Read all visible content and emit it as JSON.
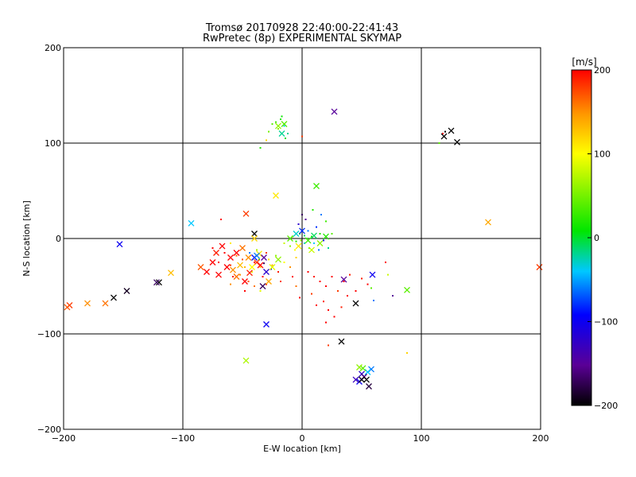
{
  "chart_data": {
    "type": "scatter",
    "title": "Tromsø 20170928 22:40:00-22:41:43",
    "subtitle": "RwPretec (8p) EXPERIMENTAL SKYMAP",
    "xlabel": "E-W location [km]",
    "ylabel": "N-S location [km]",
    "xlim": [
      -200,
      200
    ],
    "ylim": [
      -200,
      200
    ],
    "xticks": [
      -200,
      -100,
      0,
      100,
      200
    ],
    "yticks": [
      -200,
      -100,
      0,
      100,
      200
    ],
    "grid": true,
    "colorbar": {
      "label": "[m/s]",
      "min": -200,
      "max": 200,
      "ticks": [
        200,
        100,
        0,
        -100,
        -200
      ],
      "colormap": "rainbow (black-purple-blue-cyan-green-yellow-orange-red)"
    },
    "point_series": [
      {
        "marker": "dot",
        "points": [
          [
            -22,
            122,
            30
          ],
          [
            -18,
            125,
            20
          ],
          [
            -15,
            118,
            -40
          ],
          [
            -20,
            115,
            60
          ],
          [
            -25,
            120,
            40
          ],
          [
            -12,
            110,
            -20
          ],
          [
            -17,
            128,
            10
          ],
          [
            -28,
            112,
            50
          ],
          [
            -14,
            105,
            0
          ],
          [
            -30,
            103,
            120
          ],
          [
            -35,
            95,
            20
          ],
          [
            0,
            107,
            180
          ],
          [
            -8,
            2,
            50
          ],
          [
            -5,
            -3,
            20
          ],
          [
            -2,
            5,
            0
          ],
          [
            2,
            -5,
            -30
          ],
          [
            5,
            8,
            -60
          ],
          [
            8,
            2,
            10
          ],
          [
            10,
            -5,
            -40
          ],
          [
            12,
            12,
            -80
          ],
          [
            15,
            5,
            20
          ],
          [
            18,
            -2,
            -100
          ],
          [
            20,
            18,
            30
          ],
          [
            -3,
            15,
            -120
          ],
          [
            3,
            20,
            -150
          ],
          [
            6,
            -10,
            40
          ],
          [
            -10,
            -8,
            60
          ],
          [
            14,
            -12,
            -60
          ],
          [
            22,
            -10,
            -20
          ],
          [
            25,
            5,
            40
          ],
          [
            -6,
            -12,
            100
          ],
          [
            0,
            25,
            -170
          ],
          [
            9,
            30,
            20
          ],
          [
            -15,
            -5,
            80
          ],
          [
            16,
            25,
            -60
          ],
          [
            4,
            0,
            30
          ],
          [
            -1,
            -2,
            60
          ],
          [
            2,
            3,
            -10
          ],
          [
            -45,
            -20,
            150
          ],
          [
            -40,
            -25,
            200
          ],
          [
            -35,
            -30,
            120
          ],
          [
            -30,
            -15,
            180
          ],
          [
            -50,
            -22,
            170
          ],
          [
            -25,
            -28,
            140
          ],
          [
            -42,
            -35,
            90
          ],
          [
            -55,
            -18,
            160
          ],
          [
            -33,
            -40,
            200
          ],
          [
            -28,
            -22,
            110
          ],
          [
            -48,
            -30,
            130
          ],
          [
            -38,
            -12,
            70
          ],
          [
            -20,
            -35,
            190
          ],
          [
            -60,
            -28,
            180
          ],
          [
            -15,
            -25,
            100
          ],
          [
            -52,
            -38,
            150
          ],
          [
            -45,
            -45,
            170
          ],
          [
            -30,
            -48,
            200
          ],
          [
            -22,
            -18,
            60
          ],
          [
            -65,
            -15,
            200
          ],
          [
            -58,
            -40,
            190
          ],
          [
            -40,
            -50,
            160
          ],
          [
            -36,
            -22,
            20
          ],
          [
            -44,
            -15,
            -60
          ],
          [
            -10,
            -30,
            150
          ],
          [
            -5,
            -20,
            120
          ],
          [
            -26,
            -32,
            -100
          ],
          [
            -32,
            -26,
            -170
          ],
          [
            -70,
            -25,
            200
          ],
          [
            -75,
            -10,
            200
          ],
          [
            -68,
            20,
            200
          ],
          [
            -60,
            -5,
            110
          ],
          [
            -48,
            -55,
            200
          ],
          [
            -35,
            -55,
            90
          ],
          [
            -18,
            -45,
            180
          ],
          [
            -8,
            -40,
            200
          ],
          [
            5,
            -35,
            200
          ],
          [
            10,
            -40,
            190
          ],
          [
            15,
            -45,
            200
          ],
          [
            20,
            -50,
            200
          ],
          [
            25,
            -40,
            200
          ],
          [
            30,
            -55,
            180
          ],
          [
            35,
            -45,
            200
          ],
          [
            40,
            -38,
            190
          ],
          [
            -2,
            -62,
            200
          ],
          [
            8,
            -58,
            180
          ],
          [
            12,
            -70,
            200
          ],
          [
            18,
            -66,
            190
          ],
          [
            22,
            -75,
            200
          ],
          [
            27,
            -82,
            200
          ],
          [
            33,
            -72,
            190
          ],
          [
            38,
            -60,
            200
          ],
          [
            45,
            -55,
            200
          ],
          [
            50,
            -42,
            190
          ],
          [
            55,
            -48,
            200
          ],
          [
            60,
            -65,
            -60
          ],
          [
            20,
            -88,
            200
          ],
          [
            22,
            -112,
            180
          ],
          [
            -5,
            -50,
            160
          ],
          [
            -60,
            -48,
            150
          ],
          [
            70,
            -25,
            200
          ],
          [
            72,
            -38,
            80
          ],
          [
            76,
            -60,
            -150
          ],
          [
            58,
            -52,
            40
          ],
          [
            88,
            -120,
            120
          ],
          [
            120,
            112,
            -200
          ],
          [
            118,
            110,
            200
          ],
          [
            115,
            100,
            40
          ]
        ]
      },
      {
        "marker": "x",
        "points": [
          [
            -17,
            110,
            -20
          ],
          [
            27,
            133,
            -150
          ],
          [
            -15,
            120,
            40
          ],
          [
            -20,
            118,
            60
          ],
          [
            -22,
            45,
            110
          ],
          [
            12,
            55,
            30
          ],
          [
            -93,
            16,
            -40
          ],
          [
            -47,
            26,
            180
          ],
          [
            -40,
            5,
            -200
          ],
          [
            -40,
            0,
            120
          ],
          [
            -50,
            -10,
            160
          ],
          [
            -55,
            -15,
            200
          ],
          [
            -45,
            -20,
            150
          ],
          [
            -38,
            -25,
            180
          ],
          [
            -42,
            -30,
            100
          ],
          [
            -30,
            -35,
            -120
          ],
          [
            -35,
            -28,
            200
          ],
          [
            -60,
            -20,
            200
          ],
          [
            -72,
            -15,
            190
          ],
          [
            -75,
            -25,
            200
          ],
          [
            -80,
            -35,
            200
          ],
          [
            -85,
            -30,
            170
          ],
          [
            -70,
            -38,
            200
          ],
          [
            -55,
            -40,
            160
          ],
          [
            -48,
            -45,
            200
          ],
          [
            -33,
            -50,
            -170
          ],
          [
            -28,
            -45,
            140
          ],
          [
            -25,
            -30,
            90
          ],
          [
            -20,
            -22,
            60
          ],
          [
            -52,
            -28,
            130
          ],
          [
            -63,
            -30,
            200
          ],
          [
            -67,
            -8,
            200
          ],
          [
            -36,
            -16,
            110
          ],
          [
            -44,
            -36,
            190
          ],
          [
            -58,
            -33,
            150
          ],
          [
            -40,
            -20,
            -90
          ],
          [
            -32,
            -20,
            -150
          ],
          [
            -38,
            -18,
            -60
          ],
          [
            -10,
            0,
            40
          ],
          [
            -5,
            5,
            -30
          ],
          [
            5,
            -2,
            30
          ],
          [
            10,
            3,
            -10
          ],
          [
            0,
            8,
            -80
          ],
          [
            15,
            -5,
            60
          ],
          [
            20,
            2,
            20
          ],
          [
            -3,
            -8,
            110
          ],
          [
            8,
            -12,
            80
          ],
          [
            -153,
            -6,
            -100
          ],
          [
            -110,
            -36,
            130
          ],
          [
            -120,
            -46,
            -200
          ],
          [
            -122,
            -46,
            -170
          ],
          [
            -147,
            -55,
            -190
          ],
          [
            -158,
            -62,
            -200
          ],
          [
            -165,
            -68,
            160
          ],
          [
            -180,
            -68,
            150
          ],
          [
            -195,
            -70,
            180
          ],
          [
            -197,
            -72,
            170
          ],
          [
            -30,
            -90,
            -100
          ],
          [
            -47,
            -128,
            70
          ],
          [
            33,
            -108,
            -200
          ],
          [
            45,
            -68,
            -200
          ],
          [
            35,
            -43,
            -150
          ],
          [
            59,
            -38,
            -100
          ],
          [
            88,
            -54,
            40
          ],
          [
            119,
            107,
            -200
          ],
          [
            125,
            113,
            -200
          ],
          [
            130,
            101,
            -200
          ],
          [
            156,
            17,
            140
          ],
          [
            199,
            -30,
            180
          ],
          [
            58,
            -137,
            -60
          ],
          [
            55,
            -140,
            -40
          ],
          [
            51,
            -136,
            40
          ],
          [
            48,
            -135,
            60
          ],
          [
            50,
            -142,
            -120
          ],
          [
            52,
            -145,
            -160
          ],
          [
            48,
            -150,
            -100
          ],
          [
            54,
            -148,
            -200
          ],
          [
            56,
            -155,
            -180
          ],
          [
            50,
            -148,
            -200
          ],
          [
            45,
            -148,
            -130
          ]
        ]
      }
    ]
  }
}
